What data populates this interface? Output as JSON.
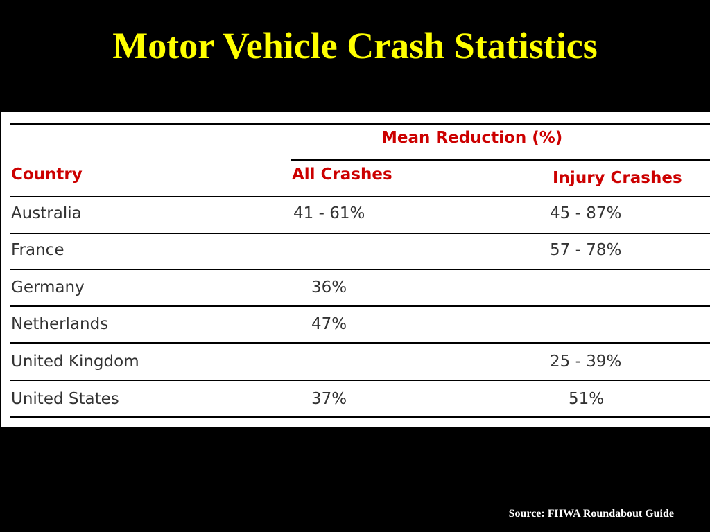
{
  "slide": {
    "title": "Motor Vehicle Crash Statistics",
    "source": "Source: FHWA Roundabout Guide"
  },
  "table": {
    "group_header": "Mean Reduction (%)",
    "columns": {
      "country": "Country",
      "all_crashes": "All Crashes",
      "injury_crashes": "Injury Crashes"
    },
    "rows": [
      {
        "country": "Australia",
        "all": "41 - 61%",
        "injury": "45 - 87%"
      },
      {
        "country": "France",
        "all": "",
        "injury": "57 - 78%"
      },
      {
        "country": "Germany",
        "all": "36%",
        "injury": ""
      },
      {
        "country": "Netherlands",
        "all": "47%",
        "injury": ""
      },
      {
        "country": "United Kingdom",
        "all": "",
        "injury": "25 - 39%"
      },
      {
        "country": "United States",
        "all": "37%",
        "injury": "51%"
      }
    ]
  },
  "colors": {
    "background": "#000000",
    "title": "#ffff00",
    "header_text": "#cc0000",
    "body_text": "#333333",
    "source_text": "#ffffff"
  }
}
